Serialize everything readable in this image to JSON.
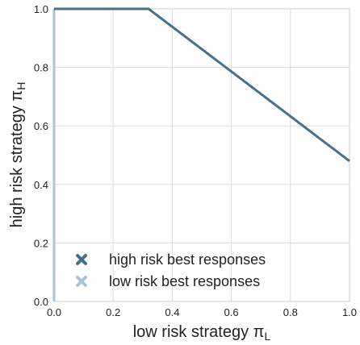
{
  "chart_data": {
    "type": "line",
    "xlabel": "low risk strategy π",
    "xlabel_sub": "L",
    "ylabel": "high risk strategy π",
    "ylabel_sub": "H",
    "xlim": [
      0,
      1
    ],
    "ylim": [
      0,
      1
    ],
    "xticks": [
      0.0,
      0.2,
      0.4,
      0.6,
      0.8,
      1.0
    ],
    "yticks": [
      0.0,
      0.2,
      0.4,
      0.6,
      0.8,
      1.0
    ],
    "xtick_labels": [
      "0.0",
      "0.2",
      "0.4",
      "0.6",
      "0.8",
      "1.0"
    ],
    "ytick_labels": [
      "0.0",
      "0.2",
      "0.4",
      "0.6",
      "0.8",
      "1.0"
    ],
    "grid": true,
    "legend_position": "bottom-left",
    "series": [
      {
        "name": "high risk best responses",
        "marker": "x",
        "color": "#44718c",
        "x": [
          0.0,
          0.32,
          1.0
        ],
        "y": [
          1.0,
          1.0,
          0.48
        ]
      },
      {
        "name": "low risk best responses",
        "marker": "x",
        "color": "#a5c7d9",
        "x": [
          0.0,
          0.0
        ],
        "y": [
          0.0,
          1.0
        ]
      }
    ]
  }
}
